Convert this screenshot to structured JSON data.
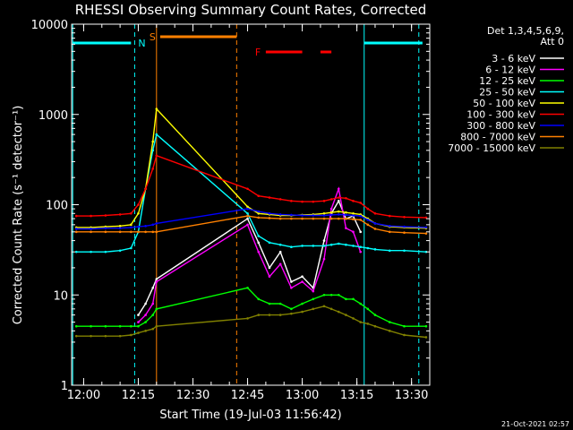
{
  "chart_data": {
    "type": "line",
    "title": "RHESSI Observing Summary Count Rates, Corrected",
    "xlabel": "Start Time (19-Jul-03 11:56:42)",
    "ylabel": "Corrected Count Rate (s⁻¹ detector⁻¹)",
    "y_scale": "log",
    "ylim": [
      1,
      10000
    ],
    "xlim": [
      "11:56:42",
      "13:35:00"
    ],
    "x_ticks": [
      "12:00",
      "12:15",
      "12:30",
      "12:45",
      "13:00",
      "13:15",
      "13:30"
    ],
    "y_ticks": [
      "1",
      "10",
      "100",
      "1000",
      "10000"
    ],
    "footer": "21-Oct-2021 02:57",
    "legend": {
      "header": [
        "Det 1,3,4,5,6,9,",
        "Att 0"
      ],
      "placement": "right"
    },
    "flags": [
      {
        "label": "N",
        "color": "#00ffff",
        "segments": [
          [
            "11:57",
            "12:13"
          ],
          [
            "13:17",
            "13:33"
          ]
        ]
      },
      {
        "label": "S",
        "color": "#ff8000",
        "segments": [
          [
            "12:21",
            "12:42"
          ]
        ]
      },
      {
        "label": "F",
        "color": "#ff0000",
        "segments": [
          [
            "12:50",
            "13:00"
          ],
          [
            "13:05",
            "13:08"
          ]
        ]
      }
    ],
    "markers": [
      {
        "time": "11:57",
        "color": "#00ffff",
        "style": "solid"
      },
      {
        "time": "12:14",
        "color": "#00ffff",
        "style": "dashed"
      },
      {
        "time": "12:20",
        "color": "#ff8000",
        "style": "solid"
      },
      {
        "time": "12:42",
        "color": "#ff8000",
        "style": "dashed"
      },
      {
        "time": "13:17",
        "color": "#00ffff",
        "style": "solid"
      },
      {
        "time": "13:32",
        "color": "#00ffff",
        "style": "dashed"
      }
    ],
    "x": [
      "11:58",
      "12:02",
      "12:06",
      "12:10",
      "12:13",
      "12:15",
      "12:17",
      "12:19",
      "12:20",
      "12:45",
      "12:48",
      "12:51",
      "12:54",
      "12:57",
      "13:00",
      "13:03",
      "13:06",
      "13:08",
      "13:10",
      "13:12",
      "13:14",
      "13:16",
      "13:18",
      "13:20",
      "13:24",
      "13:28",
      "13:34"
    ],
    "series": [
      {
        "name": "3 - 6 keV",
        "color": "#ffffff",
        "values": [
          null,
          null,
          null,
          null,
          null,
          6,
          8,
          12,
          15,
          70,
          38,
          20,
          30,
          14,
          16,
          12,
          40,
          80,
          110,
          70,
          75,
          50,
          null,
          null,
          null,
          null,
          null
        ]
      },
      {
        "name": "6 - 12 keV",
        "color": "#ff00ff",
        "values": [
          null,
          null,
          null,
          null,
          null,
          5,
          6,
          8,
          14,
          60,
          30,
          16,
          22,
          12,
          14,
          11,
          25,
          90,
          150,
          55,
          50,
          30,
          null,
          null,
          null,
          null,
          null
        ]
      },
      {
        "name": "12 - 25 keV",
        "color": "#00ff00",
        "values": [
          4.5,
          4.5,
          4.5,
          4.5,
          4.5,
          4.5,
          5,
          6,
          7,
          12,
          9,
          8,
          8,
          7,
          8,
          9,
          10,
          10,
          10,
          9,
          9,
          8,
          7,
          6,
          5,
          4.5,
          4.5
        ]
      },
      {
        "name": "25 - 50 keV",
        "color": "#00ffff",
        "values": [
          30,
          30,
          30,
          31,
          33,
          50,
          150,
          400,
          600,
          80,
          45,
          38,
          36,
          34,
          35,
          35,
          35,
          36,
          37,
          36,
          35,
          34,
          33,
          32,
          31,
          31,
          30
        ]
      },
      {
        "name": "50 - 100 keV",
        "color": "#ffff00",
        "values": [
          56,
          56,
          57,
          58,
          60,
          80,
          150,
          500,
          1150,
          95,
          80,
          78,
          76,
          76,
          77,
          78,
          80,
          82,
          84,
          82,
          80,
          78,
          70,
          62,
          57,
          56,
          55
        ]
      },
      {
        "name": "100 - 300 keV",
        "color": "#ff0000",
        "values": [
          75,
          75,
          76,
          78,
          80,
          100,
          150,
          250,
          350,
          150,
          125,
          120,
          115,
          110,
          108,
          108,
          110,
          115,
          120,
          118,
          110,
          105,
          90,
          80,
          75,
          73,
          72
        ]
      },
      {
        "name": "300 - 800 keV",
        "color": "#0000ff",
        "values": [
          54,
          54,
          55,
          55,
          56,
          57,
          58,
          60,
          62,
          90,
          84,
          80,
          78,
          77,
          76,
          76,
          76,
          77,
          78,
          77,
          76,
          75,
          68,
          62,
          58,
          57,
          56
        ]
      },
      {
        "name": "800 - 7000 keV",
        "color": "#ff8000",
        "values": [
          50,
          50,
          50,
          50,
          50,
          50,
          50,
          50,
          50,
          75,
          72,
          71,
          70,
          70,
          70,
          70,
          70,
          70,
          70,
          70,
          69,
          68,
          60,
          54,
          50,
          49,
          48
        ]
      },
      {
        "name": "7000 - 15000 keV",
        "color": "#808000",
        "values": [
          3.5,
          3.5,
          3.5,
          3.5,
          3.6,
          3.8,
          4,
          4.2,
          4.5,
          5.5,
          6,
          6,
          6,
          6.2,
          6.5,
          7,
          7.5,
          7,
          6.5,
          6,
          5.5,
          5,
          4.8,
          4.5,
          4,
          3.6,
          3.4
        ]
      }
    ]
  }
}
